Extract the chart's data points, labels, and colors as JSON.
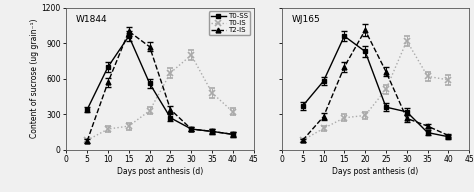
{
  "x": [
    5,
    10,
    15,
    20,
    25,
    30,
    35,
    40
  ],
  "W1844": {
    "T0_SS": [
      340,
      700,
      960,
      560,
      270,
      175,
      155,
      130
    ],
    "T0_SS_err": [
      20,
      40,
      40,
      40,
      30,
      20,
      20,
      20
    ],
    "T0_IS": [
      80,
      175,
      200,
      330,
      650,
      800,
      480,
      320
    ],
    "T0_IS_err": [
      15,
      25,
      30,
      30,
      40,
      40,
      40,
      30
    ],
    "T2_IS": [
      75,
      570,
      1000,
      870,
      340,
      175,
      155,
      130
    ],
    "T2_IS_err": [
      20,
      40,
      40,
      40,
      30,
      20,
      20,
      20
    ]
  },
  "WJ165": {
    "T0_SS": [
      370,
      580,
      960,
      830,
      360,
      320,
      145,
      110
    ],
    "T0_SS_err": [
      30,
      35,
      45,
      50,
      35,
      30,
      20,
      15
    ],
    "T0_IS": [
      80,
      180,
      270,
      290,
      510,
      920,
      620,
      590
    ],
    "T0_IS_err": [
      15,
      20,
      30,
      30,
      35,
      40,
      40,
      40
    ],
    "T2_IS": [
      80,
      280,
      700,
      1010,
      660,
      265,
      200,
      120
    ],
    "T2_IS_err": [
      15,
      30,
      45,
      50,
      40,
      30,
      20,
      15
    ]
  },
  "ylabel": "Content of sucrose (ug grain⁻¹)",
  "xlabel": "Days post anthesis (d)",
  "ylim": [
    0,
    1200
  ],
  "yticks": [
    0,
    300,
    600,
    900,
    1200
  ],
  "xlim": [
    0,
    45
  ],
  "xticks": [
    0,
    5,
    10,
    15,
    20,
    25,
    30,
    35,
    40,
    45
  ],
  "label_W1844": "W1844",
  "label_WJ165": "WJ165",
  "color_T0SS": "#000000",
  "color_T0IS": "#aaaaaa",
  "color_T2IS": "#000000",
  "bg_color": "#f0f0f0"
}
